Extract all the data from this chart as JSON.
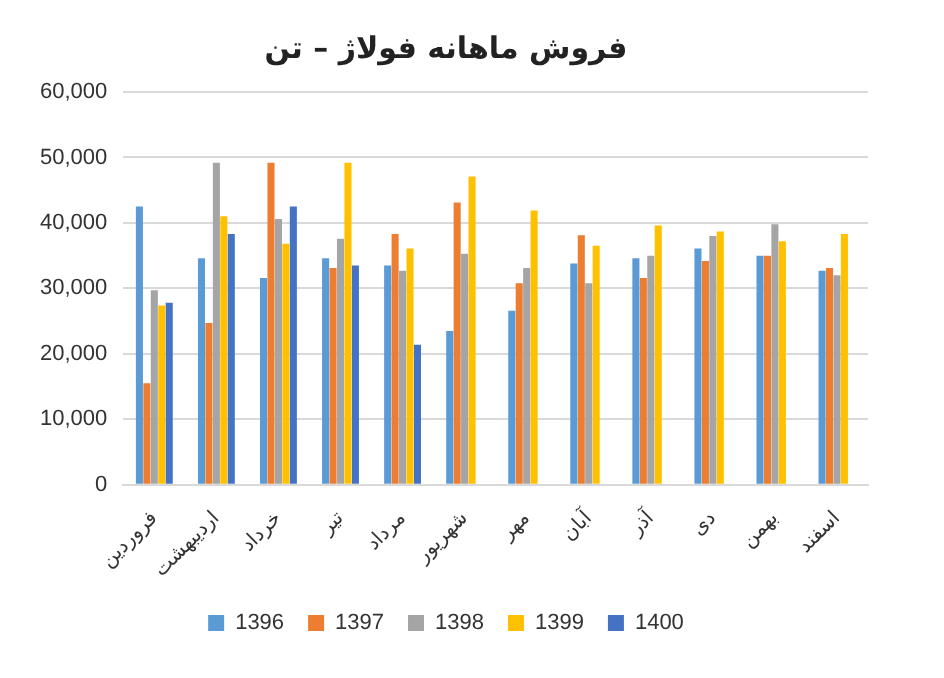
{
  "chart_data": {
    "type": "bar",
    "title": "فروش ماهانه فولاژ – تن",
    "categories": [
      "فروردین",
      "اردیبهشت",
      "خرداد",
      "تیر",
      "مرداد",
      "شهریور",
      "مهر",
      "آبان",
      "آذر",
      "دی",
      "بهمن",
      "اسفند"
    ],
    "series": [
      {
        "name": "1396",
        "color": "#5b9bd5",
        "values": [
          42500,
          34600,
          31600,
          34600,
          33500,
          23500,
          26600,
          33800,
          34600,
          36100,
          35000,
          32700
        ]
      },
      {
        "name": "1397",
        "color": "#ed7d31",
        "values": [
          15500,
          24700,
          49200,
          33100,
          38300,
          43100,
          30800,
          38100,
          31600,
          34200,
          35000,
          33100
        ]
      },
      {
        "name": "1398",
        "color": "#a5a5a5",
        "values": [
          29700,
          49200,
          40600,
          37600,
          32700,
          35300,
          33100,
          30800,
          35000,
          38000,
          39800,
          32000
        ]
      },
      {
        "name": "1399",
        "color": "#ffc000",
        "values": [
          27400,
          41000,
          36800,
          49200,
          36100,
          47100,
          41900,
          36500,
          39600,
          38700,
          37200,
          38300
        ]
      },
      {
        "name": "1400",
        "color": "#4472c4",
        "values": [
          27800,
          38300,
          42500,
          33500,
          21400,
          null,
          null,
          null,
          null,
          null,
          null,
          null
        ]
      }
    ],
    "ylim": [
      0,
      60000
    ],
    "yticks": [
      0,
      {
        "value": 10000,
        "label": "10,000"
      },
      {
        "value": 20000,
        "label": "20,000"
      },
      {
        "value": 30000,
        "label": "30,000"
      },
      {
        "value": 40000,
        "label": "40,000"
      },
      {
        "value": 50000,
        "label": "50,000"
      },
      {
        "value": 60000,
        "label": "60,000"
      }
    ],
    "grid": "y",
    "legend": "bottom"
  }
}
